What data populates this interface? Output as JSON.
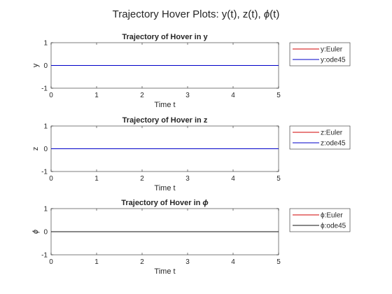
{
  "figure": {
    "suptitle_text": "Trajectory Hover Plots: y(t), z(t),",
    "suptitle_symbol": "ϕ",
    "suptitle_suffix": "(t)"
  },
  "chart_data": [
    {
      "type": "line",
      "title": "Trajectory of Hover in y",
      "title_symbol": "",
      "xlabel": "Time t",
      "ylabel": "y",
      "xlim": [
        0,
        5
      ],
      "ylim": [
        -1,
        1
      ],
      "xticks": [
        "0",
        "1",
        "2",
        "3",
        "4",
        "5"
      ],
      "yticks": [
        "-1",
        "0",
        "1"
      ],
      "grid": false,
      "legend_position": "outside-top-right",
      "series": [
        {
          "name": "y:Euler",
          "color": "#d00000",
          "x": [
            0,
            5
          ],
          "y": [
            0,
            0
          ]
        },
        {
          "name": "y:ode45",
          "color": "#0000c8",
          "x": [
            0,
            5
          ],
          "y": [
            0,
            0
          ]
        }
      ]
    },
    {
      "type": "line",
      "title": "Trajectory of Hover in z",
      "title_symbol": "",
      "xlabel": "Time t",
      "ylabel": "z",
      "xlim": [
        0,
        5
      ],
      "ylim": [
        -1,
        1
      ],
      "xticks": [
        "0",
        "1",
        "2",
        "3",
        "4",
        "5"
      ],
      "yticks": [
        "-1",
        "0",
        "1"
      ],
      "grid": false,
      "legend_position": "outside-top-right",
      "series": [
        {
          "name": "z:Euler",
          "color": "#d00000",
          "x": [
            0,
            5
          ],
          "y": [
            0,
            0
          ]
        },
        {
          "name": "z:ode45",
          "color": "#0000c8",
          "x": [
            0,
            5
          ],
          "y": [
            0,
            0
          ]
        }
      ]
    },
    {
      "type": "line",
      "title": "Trajectory of Hover in",
      "title_symbol": "ϕ",
      "xlabel": "Time t",
      "ylabel": "ϕ",
      "xlim": [
        0,
        5
      ],
      "ylim": [
        -1,
        1
      ],
      "xticks": [
        "0",
        "1",
        "2",
        "3",
        "4",
        "5"
      ],
      "yticks": [
        "-1",
        "0",
        "1"
      ],
      "grid": false,
      "legend_position": "outside-top-right",
      "series": [
        {
          "name": "ϕ:Euler",
          "color": "#d00000",
          "x": [
            0,
            5
          ],
          "y": [
            0,
            0
          ]
        },
        {
          "name": "ϕ:ode45",
          "color": "#111111",
          "x": [
            0,
            5
          ],
          "y": [
            0,
            0
          ]
        }
      ]
    }
  ]
}
